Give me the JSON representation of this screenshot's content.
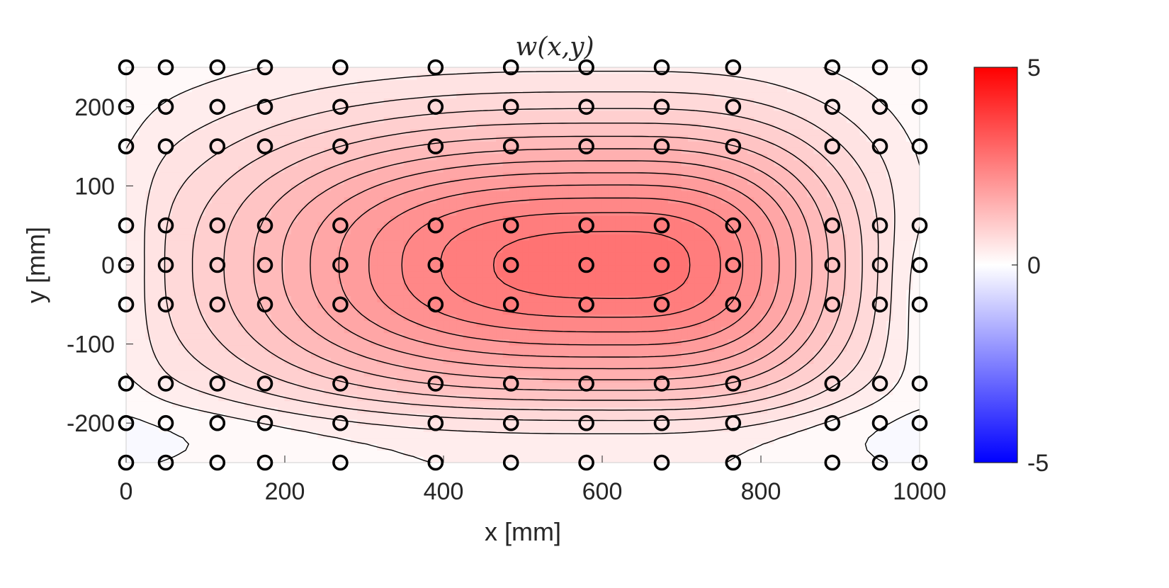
{
  "chart_data": {
    "type": "contour",
    "title": "w(x,y)",
    "xlabel": "x [mm]",
    "ylabel": "y [mm]",
    "xlim": [
      0,
      1000
    ],
    "ylim": [
      -250,
      250
    ],
    "xticks": [
      0,
      200,
      400,
      600,
      800,
      1000
    ],
    "yticks": [
      -200,
      -100,
      0,
      100,
      200
    ],
    "xtick_labels": [
      "0",
      "200",
      "400",
      "600",
      "800",
      "1000"
    ],
    "ytick_labels": [
      "-200",
      "-100",
      "0",
      "100",
      "200"
    ],
    "grid": false,
    "colorbar": {
      "min": -5,
      "max": 5,
      "ticks": [
        -5,
        0,
        5
      ],
      "tick_labels": [
        "-5",
        "0",
        "5"
      ],
      "colormap": "blue-white-red",
      "colors": {
        "low": "#0000ff",
        "mid": "#ffffff",
        "high": "#ff0000"
      }
    },
    "peak": {
      "x": 620,
      "y": 0,
      "w": 2.8
    },
    "contour_levels": [
      -0.25,
      0.0,
      0.25,
      0.45,
      0.65,
      0.85,
      1.05,
      1.25,
      1.45,
      1.65,
      1.85,
      2.05,
      2.25,
      2.45,
      2.65
    ],
    "measurement_points": {
      "x": [
        0,
        50,
        115,
        175,
        270,
        390,
        485,
        580,
        675,
        765,
        890,
        950,
        1000
      ],
      "y": [
        -250,
        -200,
        -150,
        -50,
        0,
        50,
        150,
        200,
        250
      ],
      "marker": "circle"
    }
  }
}
